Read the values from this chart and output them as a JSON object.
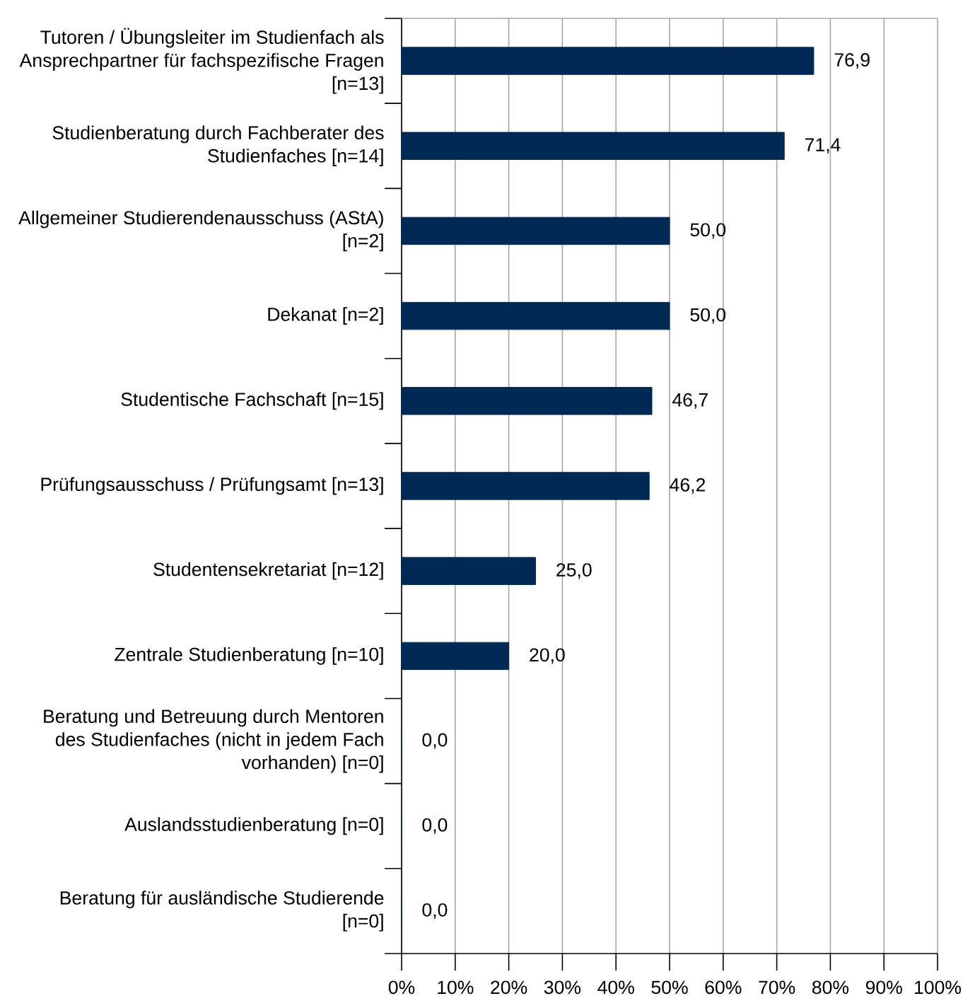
{
  "chart_data": {
    "type": "bar",
    "orientation": "horizontal",
    "categories": [
      "Tutoren / Übungsleiter im Studienfach als Ansprechpartner für fachspezifische Fragen [n=13]",
      "Studienberatung durch Fachberater des Studienfaches [n=14]",
      "Allgemeiner Studierendenausschuss (AStA) [n=2]",
      "Dekanat [n=2]",
      "Studentische Fachschaft [n=15]",
      "Prüfungsausschuss / Prüfungsamt [n=13]",
      "Studentensekretariat [n=12]",
      "Zentrale Studienberatung [n=10]",
      "Beratung und Betreuung durch Mentoren des Studienfaches (nicht in jedem Fach vorhanden) [n=0]",
      "Auslandsstudienberatung [n=0]",
      "Beratung für ausländische Studierende [n=0]"
    ],
    "values": [
      76.9,
      71.4,
      50.0,
      50.0,
      46.7,
      46.2,
      25.0,
      20.0,
      0.0,
      0.0,
      0.0
    ],
    "value_labels": [
      "76,9",
      "71,4",
      "50,0",
      "50,0",
      "46,7",
      "46,2",
      "25,0",
      "20,0",
      "0,0",
      "0,0",
      "0,0"
    ],
    "color": "#002a55",
    "xlim": [
      0,
      100
    ],
    "xticks": [
      {
        "value": 0,
        "label": "0%"
      },
      {
        "value": 10,
        "label": "10%"
      },
      {
        "value": 20,
        "label": "20%"
      },
      {
        "value": 30,
        "label": "30%"
      },
      {
        "value": 40,
        "label": "40%"
      },
      {
        "value": 50,
        "label": "50%"
      },
      {
        "value": 60,
        "label": "60%"
      },
      {
        "value": 70,
        "label": "70%"
      },
      {
        "value": 80,
        "label": "80%"
      },
      {
        "value": 90,
        "label": "90%"
      },
      {
        "value": 100,
        "label": "100%"
      }
    ],
    "grid": "x"
  }
}
